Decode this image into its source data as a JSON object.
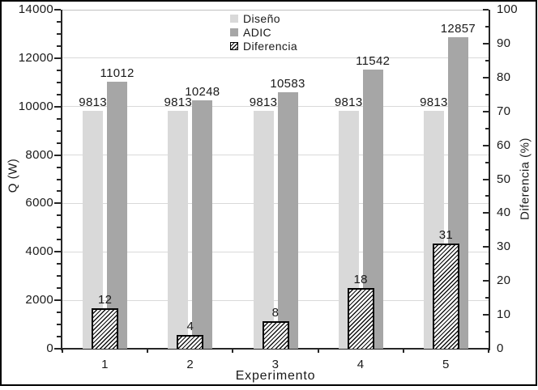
{
  "chart_data": {
    "type": "bar",
    "title": "",
    "xlabel": "Experimento",
    "categories": [
      "1",
      "2",
      "3",
      "4",
      "5"
    ],
    "left_axis": {
      "label": "Q (W)",
      "min": 0,
      "max": 14000,
      "major_step": 2000,
      "minor_step": 500,
      "tick_labels": [
        "14000",
        "12000",
        "10000",
        "8000",
        "6000",
        "4000",
        "2000",
        "0"
      ]
    },
    "right_axis": {
      "label": "Diferencia (%)",
      "min": 0,
      "max": 100,
      "major_step": 10,
      "minor_step": 5,
      "tick_labels": [
        "100",
        "90",
        "80",
        "70",
        "60",
        "50",
        "40",
        "30",
        "20",
        "10",
        "0"
      ]
    },
    "series": [
      {
        "name": "Diseño",
        "axis": "left",
        "pattern": "solid",
        "fill": "#d9d9d9",
        "values": [
          9813,
          9813,
          9813,
          9813,
          9813
        ],
        "data_labels": [
          "9813",
          "9813",
          "9813",
          "9813",
          "9813"
        ]
      },
      {
        "name": "ADIC",
        "axis": "left",
        "pattern": "solid",
        "fill": "#a6a6a6",
        "values": [
          11012,
          10248,
          10583,
          11542,
          12857
        ],
        "data_labels": [
          "11012",
          "10248",
          "10583",
          "11542",
          "12857"
        ]
      },
      {
        "name": "Diferencia",
        "axis": "right",
        "pattern": "diagonal-hatch",
        "fill": "#ffffff",
        "hatch_color": "#000000",
        "values": [
          12,
          4,
          8,
          18,
          31
        ],
        "data_labels": [
          "12",
          "4",
          "8",
          "18",
          "31"
        ]
      }
    ],
    "legend": {
      "position": "top-center-inside",
      "entries": [
        "Diseño",
        "ADIC",
        "Diferencia"
      ]
    },
    "grid": {
      "horizontal_major": true,
      "color": "#d9d9d9"
    },
    "axis_color": "#262626",
    "plot_top_border_color": "#c0c0c0",
    "figure_border_color": "#000000",
    "background": "#ffffff"
  }
}
